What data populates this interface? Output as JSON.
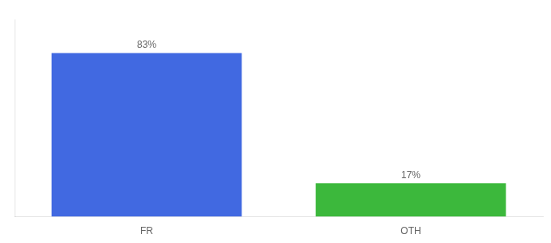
{
  "chart_data": {
    "type": "bar",
    "categories": [
      "FR",
      "OTH"
    ],
    "values": [
      83,
      17
    ],
    "value_labels": [
      "83%",
      "17%"
    ],
    "colors": [
      "#4169e1",
      "#3cb83c"
    ],
    "ylim": [
      0,
      100
    ],
    "grid": false,
    "data_labels": true,
    "tick_labels": "x"
  }
}
